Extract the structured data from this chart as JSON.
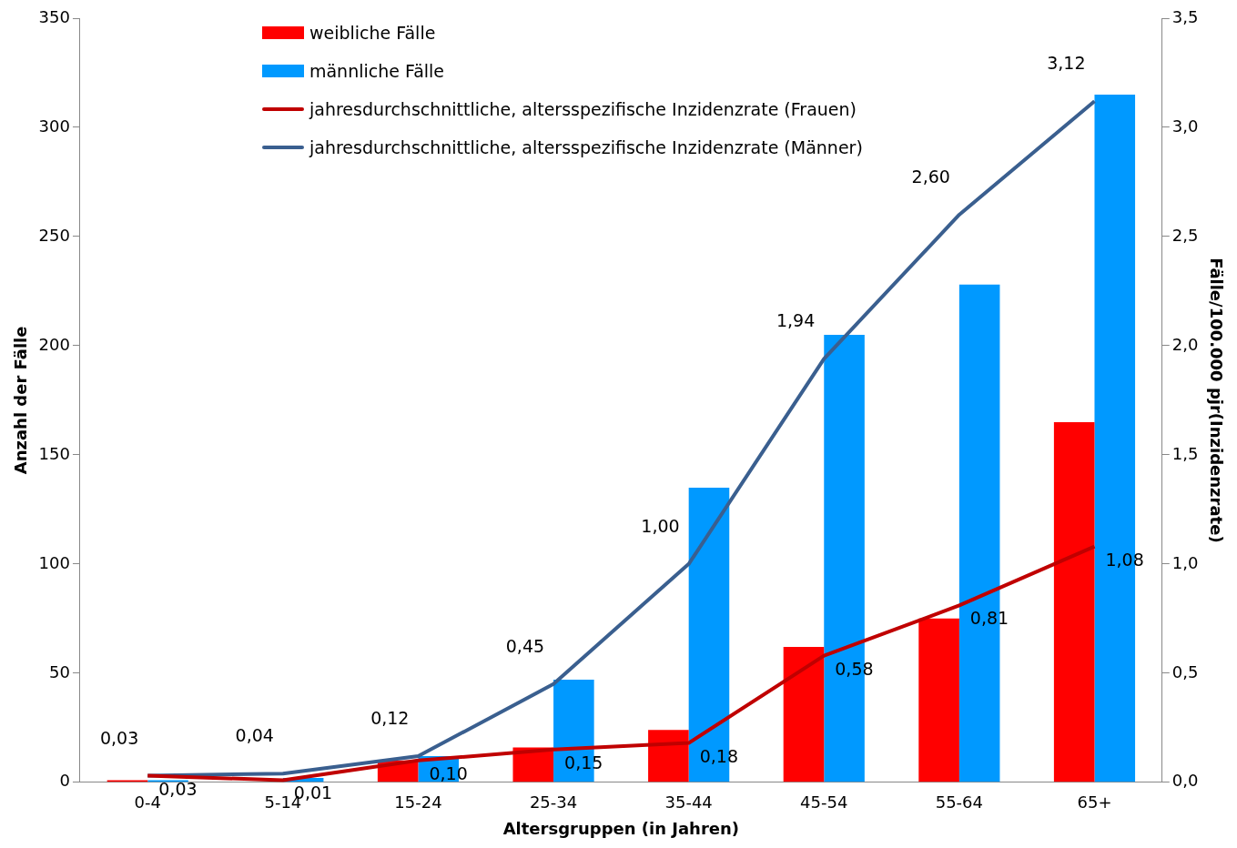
{
  "chart_data": {
    "type": "bar",
    "xlabel": "Altersgruppen (in Jahren)",
    "ylabel": "Anzahl der Fälle",
    "y2label": "Fälle/100.000 pjr(Inzidenzrate)",
    "categories": [
      "0-4",
      "5-14",
      "15-24",
      "25-34",
      "35-44",
      "45-54",
      "55-64",
      "65+"
    ],
    "series": [
      {
        "name": "weibliche Fälle",
        "color": "#ff0000",
        "values": [
          1,
          0,
          10,
          16,
          24,
          62,
          75,
          165
        ]
      },
      {
        "name": "männliche Fälle",
        "color": "#0099ff",
        "values": [
          1,
          2,
          12,
          47,
          135,
          205,
          228,
          315
        ]
      },
      {
        "name": "jahresdurchschnittliche, altersspezifische Inzidenzrate (Frauen)",
        "type": "line",
        "axis": "y2",
        "color": "#c00000",
        "values": [
          0.03,
          0.01,
          0.1,
          0.15,
          0.18,
          0.58,
          0.81,
          1.08
        ],
        "value_labels": [
          "0,03",
          "0,01",
          "0,10",
          "0,15",
          "0,18",
          "0,58",
          "0,81",
          "1,08"
        ]
      },
      {
        "name": "jahresdurchschnittliche, altersspezifische Inzidenzrate (Männer)",
        "type": "line",
        "axis": "y2",
        "color": "#3a5f8f",
        "values": [
          0.03,
          0.04,
          0.12,
          0.45,
          1.0,
          1.94,
          2.6,
          3.12
        ],
        "value_labels": [
          "0,03",
          "0,04",
          "0,12",
          "0,45",
          "1,00",
          "1,94",
          "2,60",
          "3,12"
        ]
      }
    ],
    "ylim": [
      0,
      350
    ],
    "yticks": [
      0,
      50,
      100,
      150,
      200,
      250,
      300,
      350
    ],
    "y2lim": [
      0,
      3.5
    ],
    "y2ticks": [
      {
        "value": 0,
        "label": "0,0"
      },
      {
        "value": 0.5,
        "label": "0,5"
      },
      {
        "value": 1,
        "label": "1,0"
      },
      {
        "value": 1.5,
        "label": "1,5"
      },
      {
        "value": 2,
        "label": "2,0"
      },
      {
        "value": 2.5,
        "label": "2,5"
      },
      {
        "value": 3,
        "label": "3,0"
      },
      {
        "value": 3.5,
        "label": "3,5"
      }
    ],
    "grid": false,
    "legend": "top left",
    "marker": "none",
    "line_style": "solid"
  }
}
